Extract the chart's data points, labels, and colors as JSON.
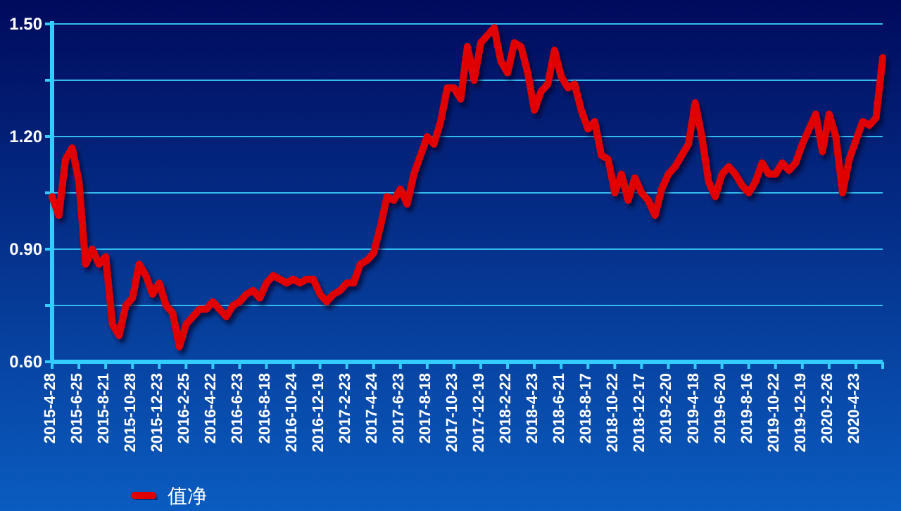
{
  "chart_data": {
    "type": "line",
    "categories": [
      "2015-4-28",
      null,
      null,
      null,
      "2015-6-25",
      null,
      null,
      null,
      "2015-8-21",
      null,
      null,
      null,
      "2015-10-28",
      null,
      null,
      null,
      "2015-12-23",
      null,
      null,
      null,
      "2016-2-25",
      null,
      null,
      null,
      "2016-4-22",
      null,
      null,
      null,
      "2016-6-23",
      null,
      null,
      null,
      "2016-8-18",
      null,
      null,
      null,
      "2016-10-24",
      null,
      null,
      null,
      "2016-12-19",
      null,
      null,
      null,
      "2017-2-23",
      null,
      null,
      null,
      "2017-4-24",
      null,
      null,
      null,
      "2017-6-23",
      null,
      null,
      null,
      "2017-8-18",
      null,
      null,
      null,
      "2017-10-23",
      null,
      null,
      null,
      "2017-12-19",
      null,
      null,
      null,
      "2018-2-22",
      null,
      null,
      null,
      "2018-4-23",
      null,
      null,
      null,
      "2018-6-21",
      null,
      null,
      null,
      "2018-8-17",
      null,
      null,
      null,
      "2018-10-22",
      null,
      null,
      null,
      "2018-12-17",
      null,
      null,
      null,
      "2019-2-20",
      null,
      null,
      null,
      "2019-4-18",
      null,
      null,
      null,
      "2019-6-20",
      null,
      null,
      null,
      "2019-8-16",
      null,
      null,
      null,
      "2019-10-22",
      null,
      null,
      null,
      "2019-12-19",
      null,
      null,
      null,
      "2020-2-26",
      null,
      null,
      null,
      "2020-4-23",
      null,
      null,
      null,
      null
    ],
    "series": [
      {
        "name": "值净",
        "color": "#e00000",
        "values": [
          1.04,
          0.99,
          1.14,
          1.17,
          1.08,
          0.86,
          0.9,
          0.86,
          0.88,
          0.7,
          0.67,
          0.75,
          0.77,
          0.86,
          0.83,
          0.78,
          0.81,
          0.75,
          0.73,
          0.64,
          0.7,
          0.72,
          0.74,
          0.74,
          0.76,
          0.74,
          0.72,
          0.75,
          0.76,
          0.78,
          0.79,
          0.77,
          0.81,
          0.83,
          0.82,
          0.81,
          0.82,
          0.81,
          0.82,
          0.82,
          0.78,
          0.76,
          0.78,
          0.79,
          0.81,
          0.81,
          0.86,
          0.87,
          0.89,
          0.96,
          1.04,
          1.03,
          1.06,
          1.02,
          1.1,
          1.15,
          1.2,
          1.18,
          1.24,
          1.33,
          1.33,
          1.3,
          1.44,
          1.35,
          1.45,
          1.47,
          1.49,
          1.4,
          1.37,
          1.45,
          1.44,
          1.37,
          1.27,
          1.32,
          1.34,
          1.43,
          1.36,
          1.33,
          1.34,
          1.27,
          1.22,
          1.24,
          1.15,
          1.14,
          1.05,
          1.1,
          1.03,
          1.09,
          1.05,
          1.03,
          0.99,
          1.06,
          1.1,
          1.12,
          1.15,
          1.18,
          1.29,
          1.2,
          1.08,
          1.04,
          1.1,
          1.12,
          1.1,
          1.07,
          1.05,
          1.08,
          1.13,
          1.1,
          1.1,
          1.13,
          1.11,
          1.13,
          1.18,
          1.22,
          1.26,
          1.16,
          1.26,
          1.2,
          1.05,
          1.14,
          1.19,
          1.24,
          1.23,
          1.25,
          1.41
        ]
      }
    ],
    "ylim": [
      0.6,
      1.5
    ],
    "yticks": [
      {
        "value": 0.6,
        "label": "0.60"
      },
      {
        "value": 0.75,
        "label": null
      },
      {
        "value": 0.9,
        "label": "0.90"
      },
      {
        "value": 1.05,
        "label": null
      },
      {
        "value": 1.2,
        "label": "1.20"
      },
      {
        "value": 1.35,
        "label": null
      },
      {
        "value": 1.5,
        "label": "1.50"
      }
    ],
    "grid": "y",
    "legend": "bottom left",
    "marker": "none",
    "line_style": "solid"
  }
}
